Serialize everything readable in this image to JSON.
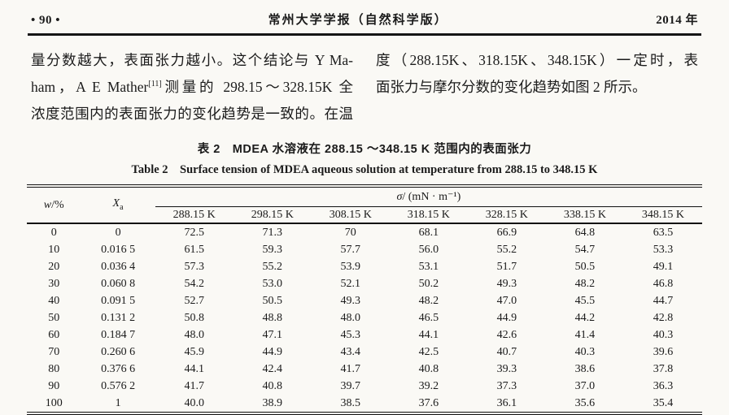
{
  "header": {
    "page_number": "• 90 •",
    "journal_title": "常州大学学报（自然科学版）",
    "year": "2014 年"
  },
  "body": {
    "left": {
      "line1": "量分数越大，表面张力越小。这个结论与 Y Ma-",
      "line2_pre": "ham，A E Mather",
      "line2_sup": "[11]",
      "line2_post": "测量的 298.15～328.15K 全",
      "line3": "浓度范围内的表面张力的变化趋势是一致的。在温"
    },
    "right": {
      "line1": "度（288.15K、318.15K、348.15K）一定时，表",
      "line2": "面张力与摩尔分数的变化趋势如图 2 所示。"
    }
  },
  "table": {
    "caption_zh": "表 2　MDEA 水溶液在 288.15 ～348.15 K 范围内的表面张力",
    "caption_en": "Table 2　Surface tension of MDEA aqueous solution at temperature from 288.15 to 348.15 K",
    "col_w_var": "w",
    "col_w_rest": "/%",
    "col_x_var": "X",
    "col_x_sub": "a",
    "sigma_var": "σ",
    "sigma_rest": "/ (mN · m⁻¹)",
    "temp_headers": [
      "288.15 K",
      "298.15 K",
      "308.15 K",
      "318.15 K",
      "328.15 K",
      "338.15 K",
      "348.15 K"
    ],
    "rows": [
      [
        "0",
        "0",
        "72.5",
        "71.3",
        "70",
        "68.1",
        "66.9",
        "64.8",
        "63.5"
      ],
      [
        "10",
        "0.016 5",
        "61.5",
        "59.3",
        "57.7",
        "56.0",
        "55.2",
        "54.7",
        "53.3"
      ],
      [
        "20",
        "0.036 4",
        "57.3",
        "55.2",
        "53.9",
        "53.1",
        "51.7",
        "50.5",
        "49.1"
      ],
      [
        "30",
        "0.060 8",
        "54.2",
        "53.0",
        "52.1",
        "50.2",
        "49.3",
        "48.2",
        "46.8"
      ],
      [
        "40",
        "0.091 5",
        "52.7",
        "50.5",
        "49.3",
        "48.2",
        "47.0",
        "45.5",
        "44.7"
      ],
      [
        "50",
        "0.131 2",
        "50.8",
        "48.8",
        "48.0",
        "46.5",
        "44.9",
        "44.2",
        "42.8"
      ],
      [
        "60",
        "0.184 7",
        "48.0",
        "47.1",
        "45.3",
        "44.1",
        "42.6",
        "41.4",
        "40.3"
      ],
      [
        "70",
        "0.260 6",
        "45.9",
        "44.9",
        "43.4",
        "42.5",
        "40.7",
        "40.3",
        "39.6"
      ],
      [
        "80",
        "0.376 6",
        "44.1",
        "42.4",
        "41.7",
        "40.8",
        "39.3",
        "38.6",
        "37.8"
      ],
      [
        "90",
        "0.576 2",
        "41.7",
        "40.8",
        "39.7",
        "39.2",
        "37.3",
        "37.0",
        "36.3"
      ],
      [
        "100",
        "1",
        "40.0",
        "38.9",
        "38.5",
        "37.6",
        "36.1",
        "35.6",
        "35.4"
      ]
    ]
  }
}
